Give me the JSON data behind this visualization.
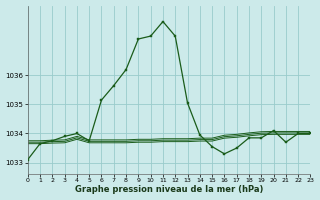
{
  "title": "Graphe pression niveau de la mer (hPa)",
  "bg_color": "#cceaea",
  "grid_color": "#99cccc",
  "line_color": "#1a5c1a",
  "xlim": [
    0,
    23
  ],
  "ylim": [
    1032.6,
    1038.4
  ],
  "yticks": [
    1033,
    1034,
    1035,
    1036
  ],
  "xticks": [
    0,
    1,
    2,
    3,
    4,
    5,
    6,
    7,
    8,
    9,
    10,
    11,
    12,
    13,
    14,
    15,
    16,
    17,
    18,
    19,
    20,
    21,
    22,
    23
  ],
  "main_line": {
    "x": [
      0,
      1,
      2,
      3,
      4,
      5,
      6,
      7,
      8,
      9,
      10,
      11,
      12,
      13,
      14,
      15,
      16,
      17,
      18,
      19,
      20,
      21,
      22,
      23
    ],
    "y": [
      1033.1,
      1033.65,
      1033.75,
      1033.9,
      1034.0,
      1033.75,
      1035.15,
      1035.65,
      1036.2,
      1037.25,
      1037.35,
      1037.85,
      1037.35,
      1035.05,
      1033.95,
      1033.55,
      1033.3,
      1033.5,
      1033.85,
      1033.85,
      1034.1,
      1033.7,
      1034.0,
      1034.0
    ]
  },
  "flat_line1": {
    "x": [
      0,
      1,
      2,
      3,
      4,
      5,
      6,
      7,
      8,
      9,
      10,
      11,
      12,
      13,
      14,
      15,
      16,
      17,
      18,
      19,
      20,
      21,
      22,
      23
    ],
    "y": [
      1033.75,
      1033.75,
      1033.77,
      1033.78,
      1033.9,
      1033.78,
      1033.78,
      1033.78,
      1033.78,
      1033.8,
      1033.8,
      1033.82,
      1033.82,
      1033.82,
      1033.84,
      1033.84,
      1033.94,
      1033.97,
      1034.02,
      1034.06,
      1034.07,
      1034.07,
      1034.07,
      1034.07
    ]
  },
  "flat_line2": {
    "x": [
      0,
      1,
      2,
      3,
      4,
      5,
      6,
      7,
      8,
      9,
      10,
      11,
      12,
      13,
      14,
      15,
      16,
      17,
      18,
      19,
      20,
      21,
      22,
      23
    ],
    "y": [
      1033.7,
      1033.7,
      1033.72,
      1033.73,
      1033.85,
      1033.73,
      1033.73,
      1033.73,
      1033.73,
      1033.75,
      1033.75,
      1033.77,
      1033.77,
      1033.77,
      1033.79,
      1033.79,
      1033.89,
      1033.92,
      1033.97,
      1034.01,
      1034.02,
      1034.02,
      1034.02,
      1034.02
    ]
  },
  "flat_line3": {
    "x": [
      0,
      1,
      2,
      3,
      4,
      5,
      6,
      7,
      8,
      9,
      10,
      11,
      12,
      13,
      14,
      15,
      16,
      17,
      18,
      19,
      20,
      21,
      22,
      23
    ],
    "y": [
      1033.65,
      1033.65,
      1033.67,
      1033.68,
      1033.8,
      1033.68,
      1033.68,
      1033.68,
      1033.68,
      1033.7,
      1033.7,
      1033.72,
      1033.72,
      1033.72,
      1033.74,
      1033.74,
      1033.84,
      1033.87,
      1033.92,
      1033.96,
      1033.97,
      1033.97,
      1033.97,
      1033.97
    ]
  }
}
